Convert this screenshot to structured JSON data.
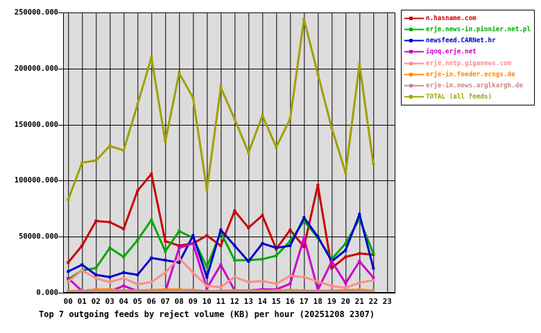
{
  "title": "Top 7 outgoing feeds by reject volume (KB) per hour (20251208 2307)",
  "plot": {
    "background": "#dcdcdc",
    "grid_color": "#000000",
    "border_color": "#000000"
  },
  "chart_data": {
    "type": "line",
    "title": "Top 7 outgoing feeds by reject volume (KB) per hour (20251208 2307)",
    "xlabel": "",
    "ylabel": "",
    "x_categories": [
      "00",
      "01",
      "02",
      "03",
      "04",
      "05",
      "06",
      "07",
      "08",
      "09",
      "10",
      "11",
      "12",
      "13",
      "14",
      "15",
      "16",
      "17",
      "18",
      "19",
      "20",
      "21",
      "22",
      "23"
    ],
    "ylim": [
      0,
      250000
    ],
    "y_tick_labels": [
      "0.000",
      "50000.000",
      "100000.000",
      "150000.000",
      "200000.000",
      "250000.000"
    ],
    "y_tick_values": [
      0,
      50000,
      100000,
      150000,
      200000,
      250000
    ],
    "grid": true,
    "legend_position": "top-right",
    "series": [
      {
        "name": "n.hasname.com",
        "color": "#cc0000",
        "values": [
          27000,
          42000,
          64000,
          63000,
          57000,
          91000,
          106000,
          46000,
          42000,
          44000,
          51000,
          42000,
          73000,
          58000,
          69000,
          39000,
          56000,
          41000,
          96000,
          22000,
          32000,
          35000,
          34000
        ]
      },
      {
        "name": "erje.news-in.pionier.net.pl",
        "color": "#00aa00",
        "values": [
          12000,
          20000,
          22000,
          40000,
          32000,
          47000,
          65000,
          37000,
          55000,
          49000,
          23000,
          54000,
          29000,
          29000,
          30000,
          33000,
          46000,
          64000,
          49000,
          30000,
          44000,
          66000,
          35000
        ]
      },
      {
        "name": "newsfeed.CARNet.hr",
        "color": "#0000cc",
        "values": [
          19000,
          25000,
          16000,
          14000,
          18000,
          16000,
          31000,
          29000,
          27000,
          51000,
          14000,
          56000,
          42000,
          28000,
          44000,
          40000,
          42000,
          67000,
          50000,
          28000,
          38000,
          70000,
          22000
        ]
      },
      {
        "name": "iqoq.erje.net",
        "color": "#cc00cc",
        "values": [
          13000,
          1500,
          800,
          1200,
          6200,
          1500,
          1000,
          1000,
          40000,
          44000,
          4000,
          25000,
          2000,
          2000,
          3000,
          3000,
          8000,
          49000,
          2500,
          28000,
          8500,
          28000,
          13500
        ]
      },
      {
        "name": "erje.nntp.giganews.com",
        "color": "#ff8c8c",
        "values": [
          10000,
          20000,
          13000,
          9500,
          13000,
          7500,
          9500,
          18000,
          31000,
          18000,
          6000,
          5000,
          14000,
          9500,
          10500,
          8000,
          15000,
          14000,
          10000,
          6000,
          4500,
          9000,
          11000
        ]
      },
      {
        "name": "erje-in.feeder.ecngs.de",
        "color": "#ff8800",
        "values": [
          1500,
          1800,
          3000,
          3000,
          2000,
          2200,
          2500,
          3000,
          2800,
          2500,
          1500,
          1800,
          2300,
          2000,
          1800,
          2300,
          2500,
          2000,
          1800,
          2000,
          2500,
          2800,
          2000
        ]
      },
      {
        "name": "erje-in.news.arglkargh.de",
        "color": "#cc8888",
        "values": [
          1200,
          1400,
          1500,
          1300,
          1400,
          1500,
          1400,
          1300,
          1500,
          1600,
          1400,
          1300,
          1500,
          1400,
          1300,
          1500,
          1400,
          1500,
          1600,
          1400,
          1300,
          1500,
          1400
        ]
      },
      {
        "name": "TOTAL (all feeds)",
        "color": "#a0a000",
        "values": [
          83000,
          116000,
          118000,
          131000,
          127000,
          168000,
          210000,
          135000,
          196000,
          174000,
          92000,
          183000,
          155000,
          125000,
          158000,
          130000,
          155000,
          244000,
          195000,
          147000,
          107000,
          204000,
          115000
        ]
      }
    ]
  }
}
